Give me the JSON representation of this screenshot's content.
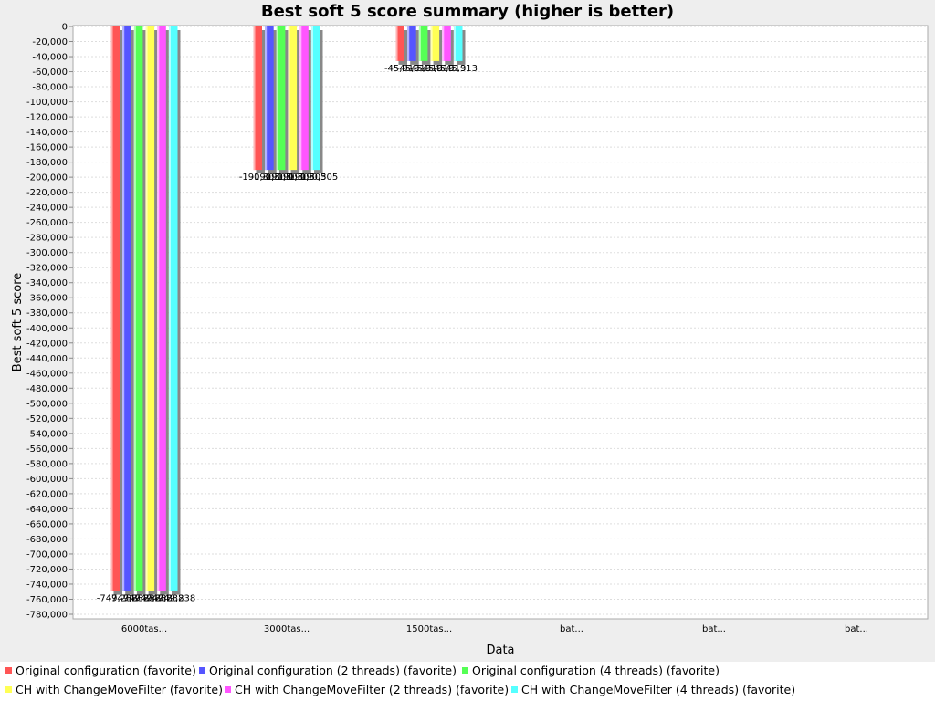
{
  "chart_data": {
    "type": "bar",
    "title": "Best soft 5 score summary (higher is better)",
    "xlabel": "Data",
    "ylabel": "Best soft 5 score",
    "ylim": [
      -780000,
      0
    ],
    "ytick_step": 20000,
    "grid": true,
    "legend_position": "bottom",
    "categories": [
      "6000tas...",
      "3000tas...",
      "1500tas...",
      "bat...",
      "bat...",
      "bat..."
    ],
    "series": [
      {
        "name": "Original configuration (favorite)",
        "color": "#ff5555",
        "values": [
          -749238,
          -190305,
          -45913,
          null,
          null,
          null
        ],
        "labels": [
          "-749,238",
          "-190,305",
          "-45,913",
          "",
          "",
          ""
        ]
      },
      {
        "name": "Original configuration (2 threads) (favorite)",
        "color": "#5555ff",
        "values": [
          -749238,
          -190305,
          -45913,
          null,
          null,
          null
        ],
        "labels": [
          "-749,238",
          "-190,305",
          "-45,913",
          "",
          "",
          ""
        ]
      },
      {
        "name": "Original configuration (4 threads) (favorite)",
        "color": "#55ff55",
        "values": [
          -749238,
          -190305,
          -45913,
          null,
          null,
          null
        ],
        "labels": [
          "-749,238",
          "-190,305",
          "-45,913",
          "",
          "",
          ""
        ]
      },
      {
        "name": "CH with ChangeMoveFilter (favorite)",
        "color": "#ffff55",
        "values": [
          -749238,
          -190305,
          -45913,
          null,
          null,
          null
        ],
        "labels": [
          "-749,238",
          "-190,305",
          "-45,913",
          "",
          "",
          ""
        ]
      },
      {
        "name": "CH with ChangeMoveFilter (2 threads) (favorite)",
        "color": "#ff55ff",
        "values": [
          -749238,
          -190305,
          -45913,
          null,
          null,
          null
        ],
        "labels": [
          "-749,238",
          "-190,305",
          "-45,913",
          "",
          "",
          ""
        ]
      },
      {
        "name": "CH with ChangeMoveFilter (4 threads) (favorite)",
        "color": "#55ffff",
        "values": [
          -749238,
          -190305,
          -45913,
          null,
          null,
          null
        ],
        "labels": [
          "-749,238",
          "-190,305",
          "-45,913",
          "",
          "",
          ""
        ]
      }
    ]
  }
}
